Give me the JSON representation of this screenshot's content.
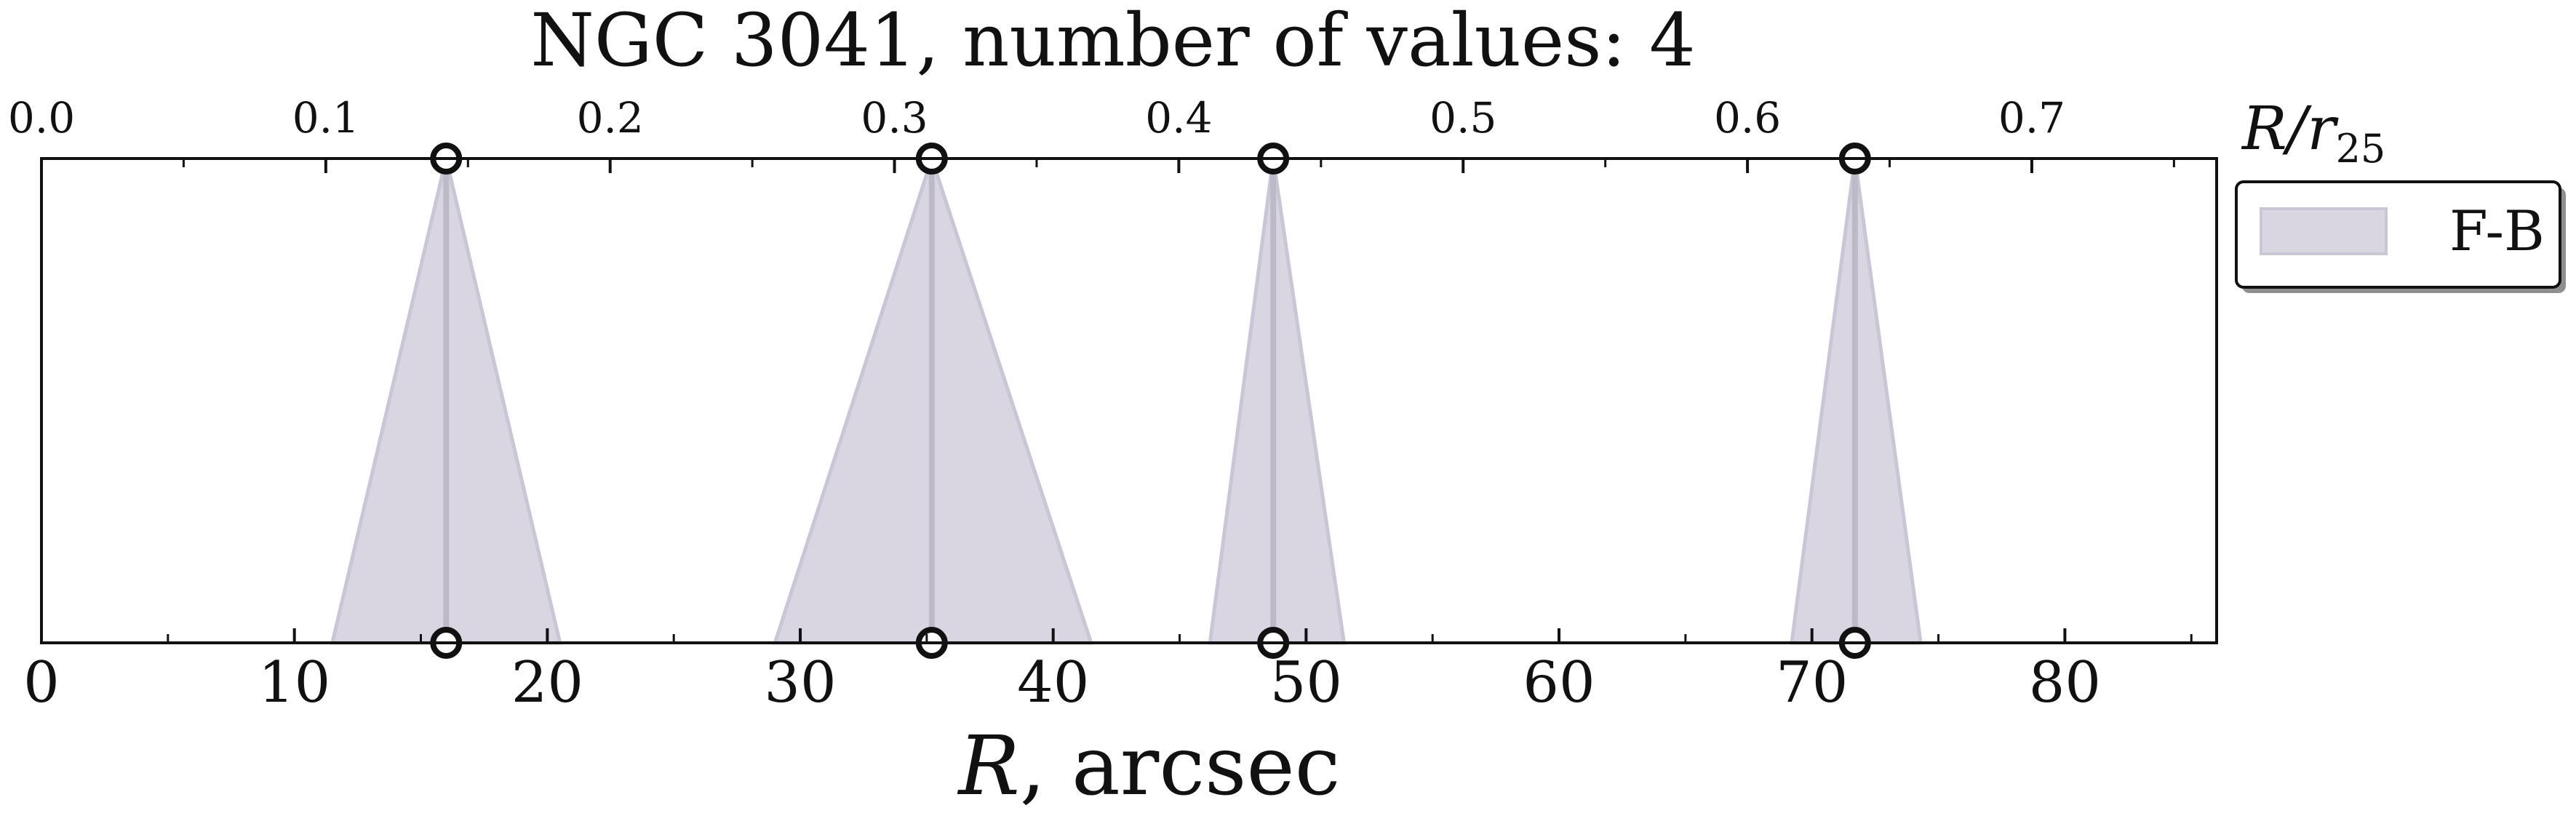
{
  "chart_data": {
    "type": "area",
    "title": "NGC 3041, number of values: 4",
    "xlabel_main": "R",
    "xlabel_unit": ", arcsec",
    "top_axis_label_main": "R/r",
    "top_axis_label_sub": "25",
    "legend_placement": "right",
    "grid": false,
    "x_bottom": {
      "range": [
        0,
        86
      ],
      "ticks": [
        0,
        10,
        20,
        30,
        40,
        50,
        60,
        70,
        80
      ],
      "tick_labels": [
        "0",
        "10",
        "20",
        "30",
        "40",
        "50",
        "60",
        "70",
        "80"
      ]
    },
    "x_top": {
      "range": [
        0,
        0.765
      ],
      "ticks": [
        0.0,
        0.1,
        0.2,
        0.3,
        0.4,
        0.5,
        0.6,
        0.7
      ],
      "tick_labels": [
        "0.0",
        "0.1",
        "0.2",
        "0.3",
        "0.4",
        "0.5",
        "0.6",
        "0.7"
      ]
    },
    "series": [
      {
        "name": "F-B",
        "color": "#d9d6e2",
        "points": [
          {
            "x": 16.0,
            "x_top": 0.145,
            "bottom_left": 11.5,
            "bottom_right": 20.5
          },
          {
            "x": 35.2,
            "x_top": 0.317,
            "bottom_left": 29.0,
            "bottom_right": 41.5
          },
          {
            "x": 48.7,
            "x_top": 0.437,
            "bottom_left": 46.2,
            "bottom_right": 51.5
          },
          {
            "x": 71.7,
            "x_top": 0.643,
            "bottom_left": 69.2,
            "bottom_right": 74.3
          }
        ]
      }
    ]
  },
  "colors": {
    "fill": "#d9d6e2",
    "fill_edge": "#c9c6d6",
    "center_line": "#bdbac8",
    "marker_edge": "#111111",
    "axis": "#111111",
    "text": "#111111"
  }
}
